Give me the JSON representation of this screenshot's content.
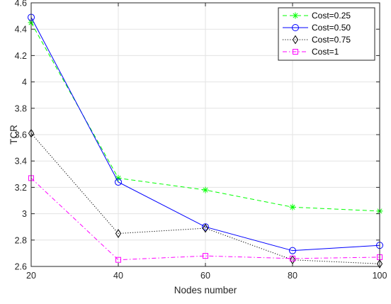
{
  "chart_data": {
    "type": "line",
    "title": "",
    "xlabel": "Nodes number",
    "ylabel": "TCR",
    "x": [
      20,
      40,
      60,
      80,
      100
    ],
    "xlim": [
      20,
      100
    ],
    "ylim": [
      2.6,
      4.6
    ],
    "xticks": [
      "20",
      "40",
      "60",
      "80",
      "100"
    ],
    "yticks": [
      "2.6",
      "2.8",
      "3",
      "3.2",
      "3.4",
      "3.6",
      "3.8",
      "4",
      "4.2",
      "4.4",
      "4.6"
    ],
    "grid": true,
    "legend_position": "top-right",
    "series": [
      {
        "name": "Cost=0.25",
        "values": [
          4.45,
          3.27,
          3.18,
          3.05,
          3.02
        ],
        "color": "#00ff00",
        "dash": "dashed",
        "marker": "asterisk"
      },
      {
        "name": "Cost=0.50",
        "values": [
          4.49,
          3.24,
          2.9,
          2.72,
          2.76
        ],
        "color": "#0000ff",
        "dash": "solid",
        "marker": "circle"
      },
      {
        "name": "Cost=0.75",
        "values": [
          3.61,
          2.85,
          2.89,
          2.65,
          2.62
        ],
        "color": "#000000",
        "dash": "dotted",
        "marker": "diamond"
      },
      {
        "name": "Cost=1",
        "values": [
          3.27,
          2.65,
          2.68,
          2.66,
          2.67
        ],
        "color": "#ff00ff",
        "dash": "dashdot",
        "marker": "square"
      }
    ]
  }
}
